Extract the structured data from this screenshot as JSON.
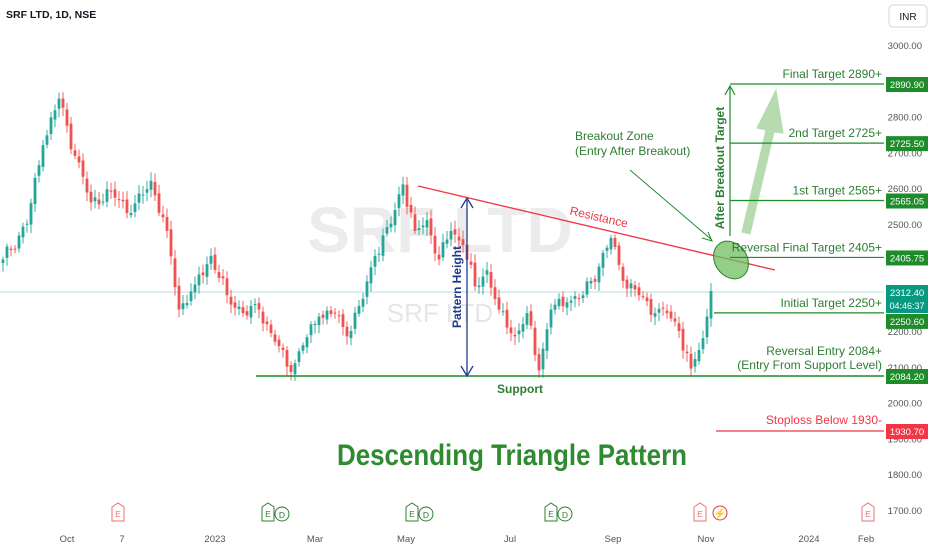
{
  "header": {
    "symbol": "SRF LTD, 1D, NSE",
    "currency": "INR"
  },
  "watermark": {
    "big": "SRF LTD",
    "small": "SRF LTD"
  },
  "colors": {
    "up": "#26a69a",
    "down": "#ef5350",
    "green_line": "#1e8c2a",
    "green_text": "#2e7d32",
    "resistance": "#f23645",
    "blue": "#1e3a8a",
    "axis_text": "#555555",
    "stoploss": "#f23645",
    "target_box": "#1e8c2a",
    "current_box": "#089981"
  },
  "chart_data": {
    "type": "candlestick",
    "ylim": [
      1680,
      3050
    ],
    "x_ticks": [
      "Oct",
      "7",
      "2023",
      "Mar",
      "May",
      "Jul",
      "Sep",
      "Nov",
      "2024",
      "Feb"
    ],
    "y_ticks": [
      "3000.00",
      "2900.00",
      "2800.00",
      "2700.00",
      "2600.00",
      "2500.00",
      "2400.00",
      "2300.00",
      "2200.00",
      "2100.00",
      "2000.00",
      "1900.00",
      "1800.00",
      "1700.00"
    ],
    "anchors": [
      [
        0,
        2400
      ],
      [
        6,
        2500
      ],
      [
        10,
        2720
      ],
      [
        14,
        2850
      ],
      [
        18,
        2690
      ],
      [
        22,
        2560
      ],
      [
        27,
        2590
      ],
      [
        32,
        2530
      ],
      [
        37,
        2620
      ],
      [
        41,
        2480
      ],
      [
        44,
        2260
      ],
      [
        48,
        2330
      ],
      [
        52,
        2410
      ],
      [
        56,
        2300
      ],
      [
        60,
        2250
      ],
      [
        64,
        2260
      ],
      [
        68,
        2170
      ],
      [
        72,
        2085
      ],
      [
        75,
        2160
      ],
      [
        79,
        2240
      ],
      [
        83,
        2250
      ],
      [
        86,
        2185
      ],
      [
        90,
        2290
      ],
      [
        93,
        2410
      ],
      [
        97,
        2500
      ],
      [
        100,
        2610
      ],
      [
        103,
        2480
      ],
      [
        106,
        2510
      ],
      [
        109,
        2400
      ],
      [
        112,
        2480
      ],
      [
        115,
        2440
      ],
      [
        118,
        2325
      ],
      [
        121,
        2370
      ],
      [
        124,
        2260
      ],
      [
        128,
        2185
      ],
      [
        131,
        2250
      ],
      [
        134,
        2090
      ],
      [
        137,
        2260
      ],
      [
        141,
        2280
      ],
      [
        145,
        2300
      ],
      [
        149,
        2380
      ],
      [
        152,
        2460
      ],
      [
        155,
        2340
      ],
      [
        159,
        2300
      ],
      [
        163,
        2250
      ],
      [
        166,
        2250
      ],
      [
        169,
        2200
      ],
      [
        172,
        2095
      ],
      [
        175,
        2180
      ],
      [
        177,
        2312
      ]
    ],
    "current_price": "2312.40",
    "countdown": "04:46:37",
    "levels": [
      {
        "label": "Final Target 2890+",
        "price": 2890.9,
        "tag": "2890.90"
      },
      {
        "label": "2nd Target 2725+",
        "price": 2725.5,
        "tag": "2725.50"
      },
      {
        "label": "1st Target 2565+",
        "price": 2565.05,
        "tag": "2565.05"
      },
      {
        "label": "Reversal Final Target 2405+",
        "price": 2405.75,
        "tag": "2405.75"
      },
      {
        "label": "Initial Target 2250+",
        "price": 2250.6,
        "tag": "2250.60"
      }
    ],
    "support": {
      "price": 2084.2,
      "tag": "2084.20",
      "label": "Support"
    },
    "stoploss": {
      "price": 1930.7,
      "tag": "1930.70",
      "label": "Stoploss Below 1930-"
    },
    "resistance": {
      "label": "Resistance",
      "from": 2620,
      "to": 2380
    },
    "pattern_height": {
      "label": "Pattern Height",
      "top": 2590,
      "bottom": 2084
    }
  },
  "annotations": {
    "title": "Descending Triangle Pattern",
    "breakout_line1": "Breakout Zone",
    "breakout_line2": "(Entry After Breakout)",
    "after_breakout": "After Breakout Target",
    "reversal_entry1": "Reversal Entry 2084+",
    "reversal_entry2": "(Entry From Support Level)"
  },
  "events": [
    "E",
    "E D",
    "E D",
    "E D",
    "E D",
    "E D",
    "E ⚡",
    "E"
  ]
}
